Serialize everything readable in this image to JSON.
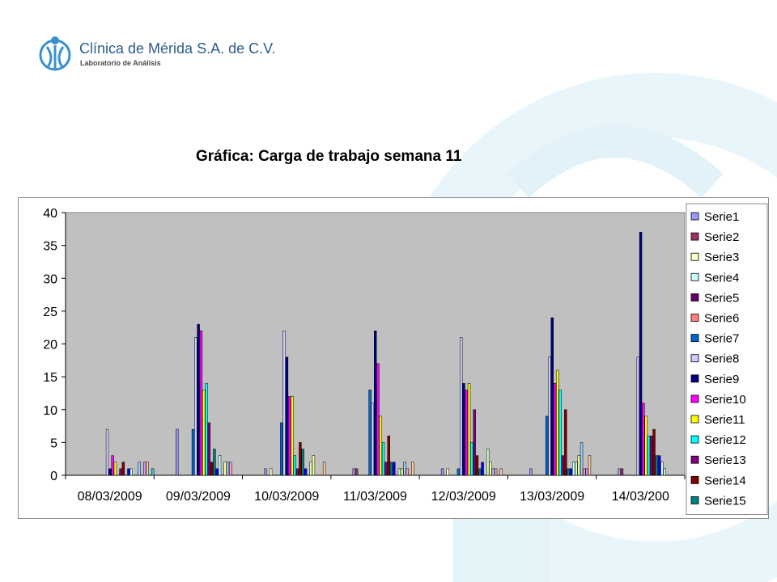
{
  "header": {
    "clinic_name": "Clínica de Mérida S.A. de C.V.",
    "department": "Laboratorio de Análisis"
  },
  "chart_data": {
    "type": "bar",
    "title": "Gráfica: Carga de trabajo semana 11",
    "xlabel": "",
    "ylabel": "",
    "ylim": [
      0,
      40
    ],
    "yticks": [
      0,
      5,
      10,
      15,
      20,
      25,
      30,
      35,
      40
    ],
    "grid": false,
    "legend_position": "right",
    "plot_background": "#c0c0c0",
    "categories": [
      "08/03/2009",
      "09/03/2009",
      "10/03/2009",
      "11/03/2009",
      "12/03/2009",
      "13/03/2009",
      "14/03/200"
    ],
    "series": [
      {
        "name": "Serie1",
        "color": "#9999ff",
        "values": [
          null,
          7,
          1,
          1,
          1,
          1,
          1
        ]
      },
      {
        "name": "Serie2",
        "color": "#993366",
        "values": [
          null,
          null,
          null,
          1,
          null,
          null,
          1
        ]
      },
      {
        "name": "Serie3",
        "color": "#ffffcc",
        "values": [
          null,
          null,
          1,
          null,
          1,
          null,
          null
        ]
      },
      {
        "name": "Serie4",
        "color": "#ccffff",
        "values": [
          null,
          null,
          null,
          null,
          null,
          null,
          null
        ]
      },
      {
        "name": "Serie5",
        "color": "#660066",
        "values": [
          null,
          null,
          null,
          null,
          null,
          null,
          null
        ]
      },
      {
        "name": "Serie6",
        "color": "#ff8080",
        "values": [
          null,
          null,
          null,
          null,
          null,
          null,
          null
        ]
      },
      {
        "name": "Serie7",
        "color": "#0066cc",
        "values": [
          null,
          7,
          8,
          13,
          1,
          9,
          null
        ]
      },
      {
        "name": "Serie8",
        "color": "#ccccff",
        "values": [
          7,
          21,
          22,
          11,
          21,
          18,
          18
        ]
      },
      {
        "name": "Serie9",
        "color": "#000080",
        "values": [
          1,
          23,
          18,
          22,
          14,
          24,
          37
        ]
      },
      {
        "name": "Serie10",
        "color": "#ff00ff",
        "values": [
          3,
          22,
          12,
          17,
          13,
          14,
          11
        ]
      },
      {
        "name": "Serie11",
        "color": "#ffff00",
        "values": [
          2,
          13,
          12,
          9,
          14,
          16,
          9
        ]
      },
      {
        "name": "Serie12",
        "color": "#00ffff",
        "values": [
          null,
          14,
          3,
          5,
          5,
          13,
          6
        ]
      },
      {
        "name": "Serie13",
        "color": "#800080",
        "values": [
          1,
          8,
          1,
          2,
          10,
          3,
          6
        ]
      },
      {
        "name": "Serie14",
        "color": "#800000",
        "values": [
          2,
          2,
          5,
          6,
          3,
          10,
          7
        ]
      },
      {
        "name": "Serie15",
        "color": "#008080",
        "values": [
          null,
          4,
          4,
          2,
          1,
          1,
          3
        ]
      }
    ],
    "trailing_bars_note_colors": [
      "#0000ff",
      "#ccffff",
      "#ccffcc",
      "#ffff99",
      "#99ccff",
      "#ff99cc",
      "#cc99ff",
      "#ffcc99",
      "#3366ff",
      "#33cccc"
    ],
    "trailing_values": [
      [
        1,
        1,
        null,
        null,
        2,
        null,
        2,
        2,
        null,
        1
      ],
      [
        1,
        3,
        null,
        2,
        2,
        2,
        null,
        null,
        null,
        null
      ],
      [
        1,
        null,
        2,
        3,
        null,
        null,
        null,
        2,
        null,
        null
      ],
      [
        2,
        null,
        1,
        1,
        2,
        1,
        null,
        2,
        null,
        null
      ],
      [
        2,
        null,
        4,
        2,
        1,
        1,
        null,
        1,
        null,
        null
      ],
      [
        1,
        2,
        2,
        3,
        5,
        1,
        1,
        3,
        null,
        null
      ],
      [
        3,
        2,
        1,
        null,
        null,
        null,
        null,
        null,
        null,
        null
      ]
    ]
  }
}
